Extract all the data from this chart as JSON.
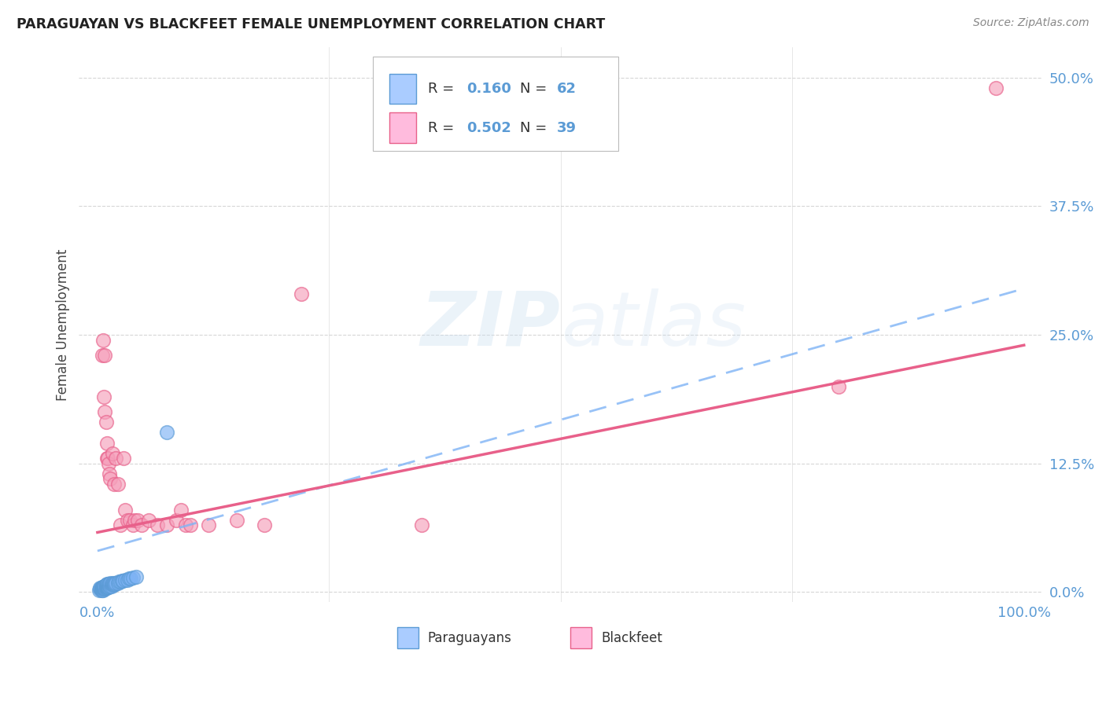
{
  "title": "PARAGUAYAN VS BLACKFEET FEMALE UNEMPLOYMENT CORRELATION CHART",
  "source": "Source: ZipAtlas.com",
  "ylabel": "Female Unemployment",
  "ytick_labels": [
    "0.0%",
    "12.5%",
    "25.0%",
    "37.5%",
    "50.0%"
  ],
  "ytick_values": [
    0.0,
    0.125,
    0.25,
    0.375,
    0.5
  ],
  "xlim": [
    -0.02,
    1.02
  ],
  "ylim": [
    -0.01,
    0.53
  ],
  "watermark_zip": "ZIP",
  "watermark_atlas": "atlas",
  "legend_r1": "R = 0.160",
  "legend_n1": "N = 62",
  "legend_r2": "R = 0.502",
  "legend_n2": "N = 39",
  "blue_color": "#7EB3F5",
  "blue_edge_color": "#5B9BD5",
  "pink_color": "#F5A0BB",
  "pink_edge_color": "#E8608A",
  "blue_line_color": "#7EB3F5",
  "pink_line_color": "#E8608A",
  "label_color": "#5B9BD5",
  "paraguayan_points_x": [
    0.002,
    0.003,
    0.003,
    0.004,
    0.004,
    0.004,
    0.004,
    0.005,
    0.005,
    0.005,
    0.005,
    0.005,
    0.005,
    0.006,
    0.006,
    0.006,
    0.006,
    0.007,
    0.007,
    0.007,
    0.007,
    0.008,
    0.008,
    0.008,
    0.009,
    0.009,
    0.009,
    0.01,
    0.01,
    0.01,
    0.01,
    0.01,
    0.011,
    0.011,
    0.011,
    0.012,
    0.012,
    0.013,
    0.013,
    0.014,
    0.014,
    0.015,
    0.015,
    0.016,
    0.016,
    0.017,
    0.018,
    0.018,
    0.019,
    0.02,
    0.022,
    0.023,
    0.025,
    0.026,
    0.027,
    0.03,
    0.032,
    0.034,
    0.036,
    0.038,
    0.042,
    0.075
  ],
  "paraguayan_points_y": [
    0.002,
    0.003,
    0.004,
    0.002,
    0.003,
    0.003,
    0.004,
    0.002,
    0.003,
    0.003,
    0.004,
    0.004,
    0.005,
    0.002,
    0.003,
    0.004,
    0.005,
    0.003,
    0.004,
    0.005,
    0.006,
    0.003,
    0.004,
    0.006,
    0.004,
    0.005,
    0.007,
    0.004,
    0.005,
    0.006,
    0.007,
    0.008,
    0.005,
    0.006,
    0.008,
    0.005,
    0.007,
    0.006,
    0.008,
    0.006,
    0.009,
    0.006,
    0.008,
    0.007,
    0.009,
    0.008,
    0.007,
    0.009,
    0.008,
    0.009,
    0.009,
    0.01,
    0.01,
    0.011,
    0.011,
    0.012,
    0.012,
    0.013,
    0.013,
    0.014,
    0.015,
    0.155
  ],
  "blackfeet_points_x": [
    0.005,
    0.006,
    0.007,
    0.008,
    0.008,
    0.009,
    0.01,
    0.01,
    0.011,
    0.012,
    0.013,
    0.014,
    0.016,
    0.018,
    0.02,
    0.022,
    0.025,
    0.028,
    0.03,
    0.032,
    0.035,
    0.038,
    0.04,
    0.043,
    0.048,
    0.055,
    0.065,
    0.075,
    0.085,
    0.09,
    0.095,
    0.1,
    0.12,
    0.15,
    0.18,
    0.22,
    0.35,
    0.8,
    0.97
  ],
  "blackfeet_points_y": [
    0.23,
    0.245,
    0.19,
    0.23,
    0.175,
    0.165,
    0.145,
    0.13,
    0.13,
    0.125,
    0.115,
    0.11,
    0.135,
    0.105,
    0.13,
    0.105,
    0.065,
    0.13,
    0.08,
    0.07,
    0.07,
    0.065,
    0.07,
    0.07,
    0.065,
    0.07,
    0.065,
    0.065,
    0.07,
    0.08,
    0.065,
    0.065,
    0.065,
    0.07,
    0.065,
    0.29,
    0.065,
    0.2,
    0.49
  ],
  "blue_trend_y_start": 0.04,
  "blue_trend_y_end": 0.295,
  "pink_trend_y_start": 0.058,
  "pink_trend_y_end": 0.24
}
